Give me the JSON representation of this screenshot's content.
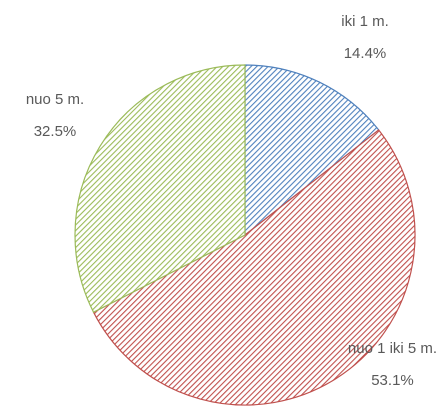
{
  "chart_data": {
    "type": "pie",
    "categories": [
      "iki 1 m.",
      "nuo 1 iki 5 m.",
      "nuo 5 m."
    ],
    "values": [
      14.4,
      53.1,
      32.5
    ],
    "value_labels": [
      "14.4%",
      "53.1%",
      "32.5%"
    ],
    "colors": [
      "#4f81bd",
      "#c0504d",
      "#9bbb59"
    ]
  }
}
